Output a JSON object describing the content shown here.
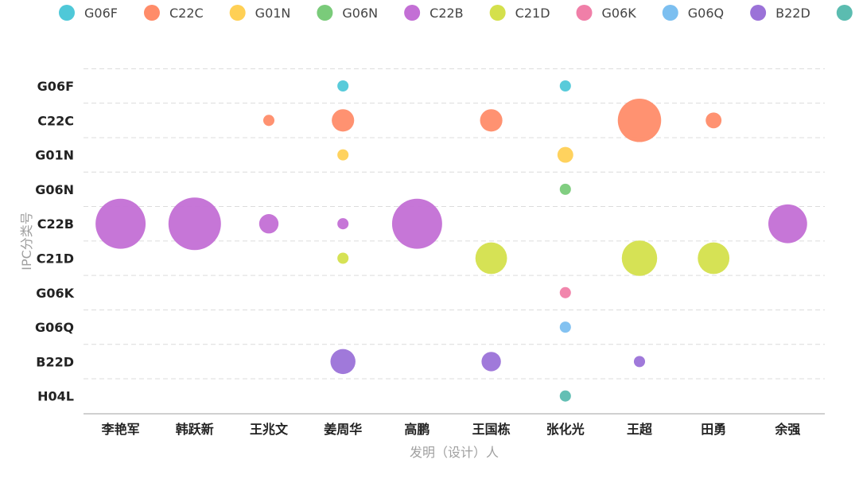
{
  "chart_data": {
    "type": "scatter",
    "subtype": "bubble",
    "xlabel": "发明（设计）人",
    "ylabel": "IPC分类号",
    "categories": [
      "李艳军",
      "韩跃新",
      "王兆文",
      "姜周华",
      "高鹏",
      "王国栋",
      "张化光",
      "王超",
      "田勇",
      "余强"
    ],
    "y_categories": [
      "G06F",
      "C22C",
      "G01N",
      "G06N",
      "C22B",
      "C21D",
      "G06K",
      "G06Q",
      "B22D",
      "H04L"
    ],
    "legend_position": "top",
    "grid": true,
    "colors": {
      "G06F": "#4fc8d8",
      "C22C": "#ff8c69",
      "G01N": "#ffd055",
      "G06N": "#7acb7a",
      "C22B": "#c36fd5",
      "C21D": "#d4e04c",
      "G06K": "#f07fa8",
      "G06Q": "#7cbff0",
      "B22D": "#9b72d8",
      "H04L": "#5bbcb0"
    },
    "series": [
      {
        "name": "G06F",
        "points": [
          {
            "x": "姜周华",
            "value": 1
          },
          {
            "x": "张化光",
            "value": 1
          }
        ]
      },
      {
        "name": "C22C",
        "points": [
          {
            "x": "王兆文",
            "value": 1
          },
          {
            "x": "姜周华",
            "value": 4
          },
          {
            "x": "王国栋",
            "value": 4
          },
          {
            "x": "王超",
            "value": 15
          },
          {
            "x": "田勇",
            "value": 2
          }
        ]
      },
      {
        "name": "G01N",
        "points": [
          {
            "x": "姜周华",
            "value": 1
          },
          {
            "x": "张化光",
            "value": 2
          }
        ]
      },
      {
        "name": "G06N",
        "points": [
          {
            "x": "张化光",
            "value": 1
          }
        ]
      },
      {
        "name": "C22B",
        "points": [
          {
            "x": "李艳军",
            "value": 20
          },
          {
            "x": "韩跃新",
            "value": 22
          },
          {
            "x": "王兆文",
            "value": 3
          },
          {
            "x": "姜周华",
            "value": 1
          },
          {
            "x": "高鹏",
            "value": 20
          },
          {
            "x": "余强",
            "value": 12
          }
        ]
      },
      {
        "name": "C21D",
        "points": [
          {
            "x": "姜周华",
            "value": 1
          },
          {
            "x": "王国栋",
            "value": 8
          },
          {
            "x": "王超",
            "value": 10
          },
          {
            "x": "田勇",
            "value": 8
          }
        ]
      },
      {
        "name": "G06K",
        "points": [
          {
            "x": "张化光",
            "value": 1
          }
        ]
      },
      {
        "name": "G06Q",
        "points": [
          {
            "x": "张化光",
            "value": 1
          }
        ]
      },
      {
        "name": "B22D",
        "points": [
          {
            "x": "姜周华",
            "value": 5
          },
          {
            "x": "王国栋",
            "value": 3
          },
          {
            "x": "王超",
            "value": 1
          }
        ]
      },
      {
        "name": "H04L",
        "points": [
          {
            "x": "张化光",
            "value": 1
          }
        ]
      }
    ]
  }
}
